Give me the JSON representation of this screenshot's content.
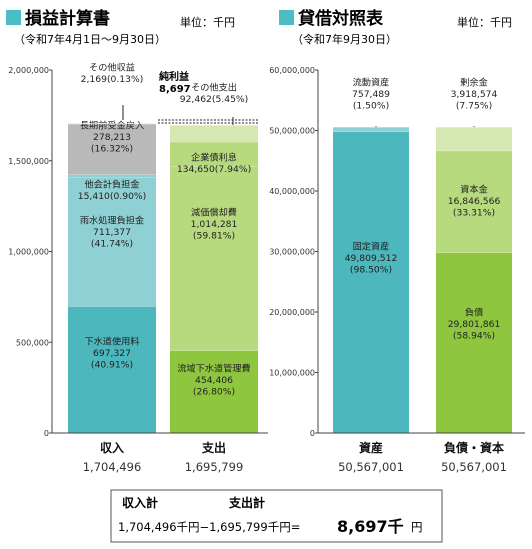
{
  "colors": {
    "title_square": "#4dbdc3",
    "teal_dark": "#4cb7bd",
    "teal_light": "#8fd0d4",
    "gray": "#b9b9b9",
    "green_dark": "#8ec63f",
    "green_light": "#b8da7e",
    "green_pale": "#d6e8b2"
  },
  "left_panel": {
    "title": "損益計算書",
    "period": "（令和7年4月1日～9月30日）",
    "unit": "単位：千円"
  },
  "right_panel": {
    "title": "貸借対照表",
    "period": "（令和7年9月30日）",
    "unit": "単位：千円"
  },
  "summary": {
    "income_label": "収入計",
    "expense_label": "支出計",
    "formula": "1,704,496千円−1,695,799千円=",
    "result": "8,697千",
    "result_unit": "円"
  },
  "chart_data": [
    {
      "type": "bar",
      "stacked": true,
      "ylim": [
        0,
        2000000
      ],
      "yticks": [
        "0",
        "500,000",
        "1,000,000",
        "1,500,000",
        "2,000,000"
      ],
      "categories": [
        {
          "name": "収入",
          "total": "1,704,496"
        },
        {
          "name": "支出",
          "total": "1,695,799"
        }
      ],
      "segments": [
        {
          "bar": 0,
          "value": 697327,
          "lines": [
            "下水道使用料",
            "697,327",
            "(40.91%)"
          ],
          "color": "#4cb7bd"
        },
        {
          "bar": 0,
          "value": 711377,
          "lines": [
            "雨水処理負担金",
            "711,377",
            "(41.74%)"
          ],
          "color": "#8fd0d4"
        },
        {
          "bar": 0,
          "value": 15410,
          "lines": [
            "他会計負担金",
            "15,410(0.90%)"
          ],
          "color": "#8fd0d4"
        },
        {
          "bar": 0,
          "value": 278213,
          "lines": [
            "長期前受金戻入",
            "278,213",
            "(16.32%)"
          ],
          "color": "#b9b9b9"
        },
        {
          "bar": 0,
          "value": 2169,
          "lines": [
            "その他収益",
            "2,169(0.13%)"
          ],
          "color": "#b9b9b9"
        },
        {
          "bar": 1,
          "value": 454406,
          "lines": [
            "流域下水道管理費",
            "454,406",
            "(26.80%)"
          ],
          "color": "#8ec63f"
        },
        {
          "bar": 1,
          "value": 1014281,
          "lines": [
            "減価償却費",
            "1,014,281",
            "(59.81%)"
          ],
          "color": "#b8da7e"
        },
        {
          "bar": 1,
          "value": 134650,
          "lines": [
            "企業債利息",
            "134,650(7.94%)"
          ],
          "color": "#b8da7e"
        },
        {
          "bar": 1,
          "value": 92462,
          "lines": [
            "その他支出",
            "92,462(5.45%)"
          ],
          "color": "#d6e8b2"
        }
      ],
      "annotation": {
        "label": "純利益",
        "value": "8,697"
      }
    },
    {
      "type": "bar",
      "stacked": true,
      "ylim": [
        0,
        60000000
      ],
      "yticks": [
        "0",
        "10,000,000",
        "20,000,000",
        "30,000,000",
        "40,000,000",
        "50,000,000",
        "60,000,000"
      ],
      "categories": [
        {
          "name": "資産",
          "total": "50,567,001"
        },
        {
          "name": "負債・資本",
          "total": "50,567,001"
        }
      ],
      "segments": [
        {
          "bar": 0,
          "value": 49809512,
          "lines": [
            "固定資産",
            "49,809,512",
            "(98.50%)"
          ],
          "color": "#4cb7bd"
        },
        {
          "bar": 0,
          "value": 757489,
          "lines": [
            "流動資産",
            "757,489",
            "(1.50%)"
          ],
          "color": "#8fd0d4"
        },
        {
          "bar": 1,
          "value": 29801861,
          "lines": [
            "負債",
            "29,801,861",
            "(58.94%)"
          ],
          "color": "#8ec63f"
        },
        {
          "bar": 1,
          "value": 16846566,
          "lines": [
            "資本金",
            "16,846,566",
            "(33.31%)"
          ],
          "color": "#b8da7e"
        },
        {
          "bar": 1,
          "value": 3918574,
          "lines": [
            "剰余金",
            "3,918,574",
            "(7.75%)"
          ],
          "color": "#d6e8b2"
        }
      ]
    }
  ]
}
